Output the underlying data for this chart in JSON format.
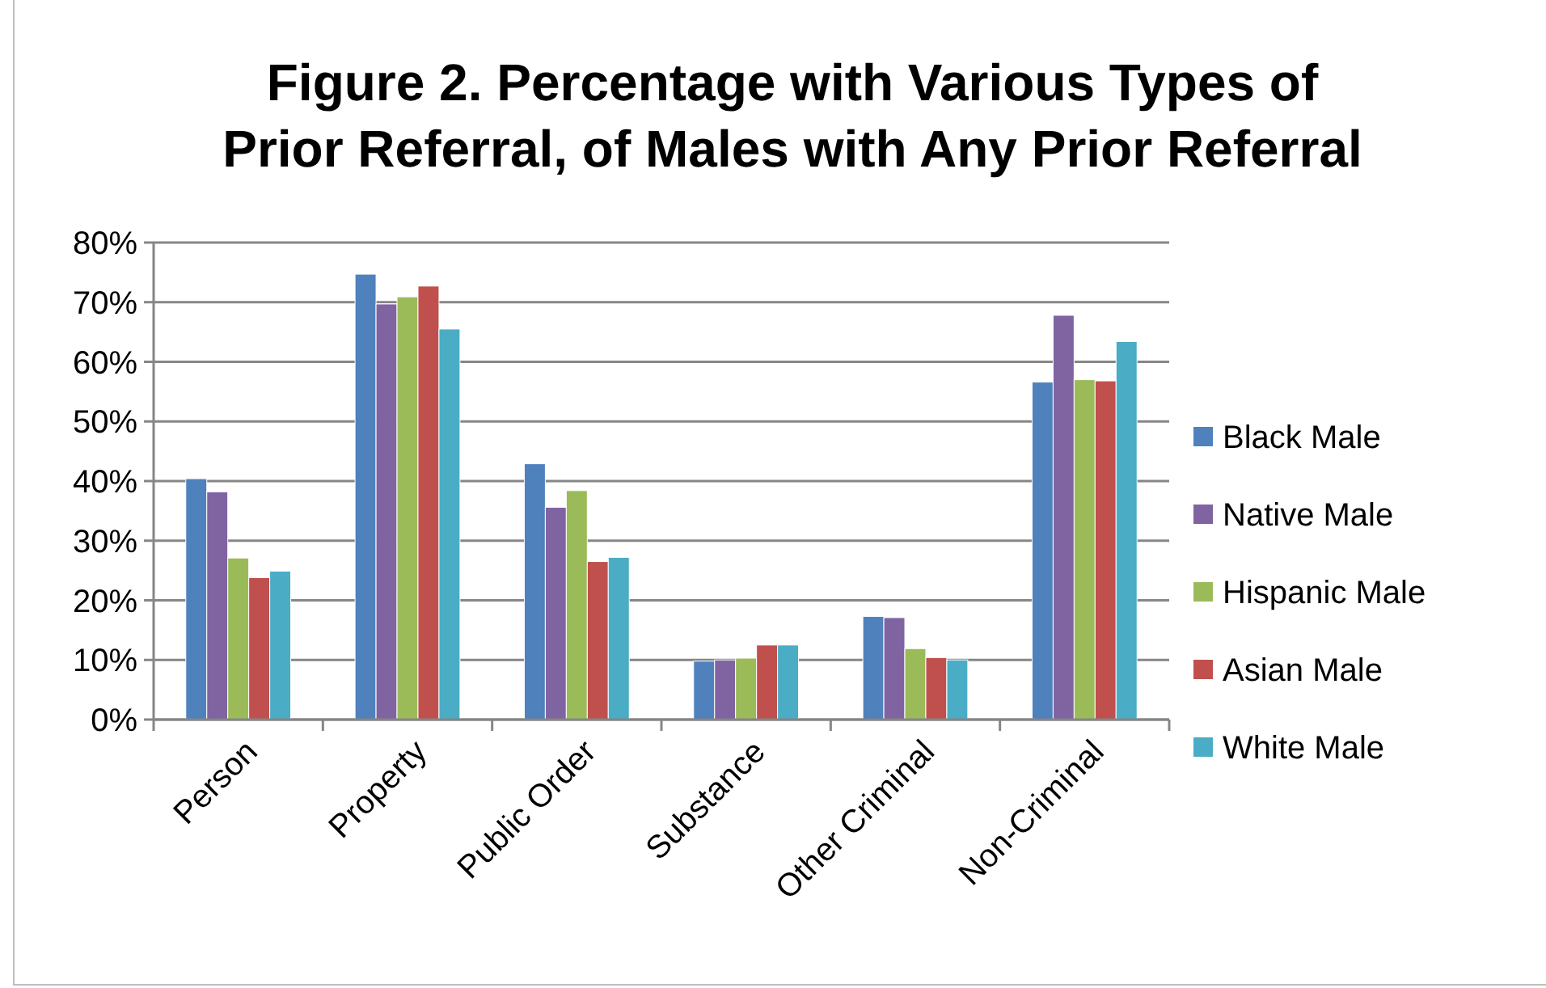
{
  "chart_data": {
    "type": "bar",
    "title": "Figure 2.  Percentage with Various Types of Prior Referral, of Males with Any Prior Referral",
    "categories": [
      "Person",
      "Property",
      "Public Order",
      "Substance",
      "Other Criminal",
      "Non-Criminal"
    ],
    "series": [
      {
        "name": "Black Male",
        "color": "#4f81bd",
        "values": [
          40.4,
          74.7,
          42.9,
          9.8,
          17.3,
          56.6
        ]
      },
      {
        "name": "Native Male",
        "color": "#8064a2",
        "values": [
          38.2,
          69.7,
          35.6,
          10.0,
          17.1,
          67.8
        ]
      },
      {
        "name": "Hispanic Male",
        "color": "#9bbb59",
        "values": [
          27.1,
          70.9,
          38.4,
          10.3,
          11.9,
          57.0
        ]
      },
      {
        "name": "Asian Male",
        "color": "#c0504d",
        "values": [
          23.8,
          72.7,
          26.5,
          12.5,
          10.4,
          56.8
        ]
      },
      {
        "name": "White Male",
        "color": "#4bacc6",
        "values": [
          24.9,
          65.5,
          27.2,
          12.5,
          10.0,
          63.4
        ]
      }
    ],
    "ylim": [
      0,
      80
    ],
    "yticks": [
      {
        "value": 0,
        "label": "0%"
      },
      {
        "value": 10,
        "label": "10%"
      },
      {
        "value": 20,
        "label": "20%"
      },
      {
        "value": 30,
        "label": "30%"
      },
      {
        "value": 40,
        "label": "40%"
      },
      {
        "value": 50,
        "label": "50%"
      },
      {
        "value": 60,
        "label": "60%"
      },
      {
        "value": 70,
        "label": "70%"
      },
      {
        "value": 80,
        "label": "80%"
      }
    ],
    "grid": "y",
    "legend": "right"
  }
}
